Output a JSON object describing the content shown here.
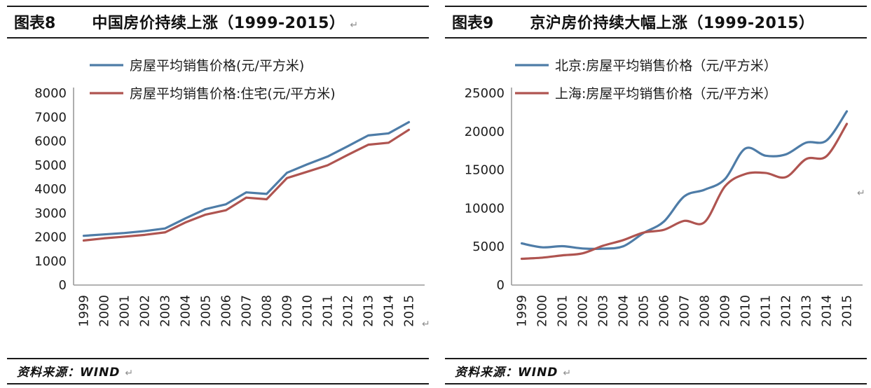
{
  "page": {
    "background": "#ffffff",
    "return_mark": "↵"
  },
  "panels": [
    {
      "id": "china",
      "header": {
        "label": "图表8",
        "title": "中国房价持续上涨（1999-2015）"
      },
      "source_label": "资料来源：WIND"
    },
    {
      "id": "beijing-shanghai",
      "header": {
        "label": "图表9",
        "title": "京沪房价持续大幅上涨（1999-2015）"
      },
      "source_label": "资料来源：WIND"
    }
  ],
  "chart_data": [
    {
      "type": "line",
      "title": "中国房价持续上涨（1999-2015）",
      "categories": [
        "1999",
        "2000",
        "2001",
        "2002",
        "2003",
        "2004",
        "2005",
        "2006",
        "2007",
        "2008",
        "2009",
        "2010",
        "2011",
        "2012",
        "2013",
        "2014",
        "2015"
      ],
      "series": [
        {
          "name": "房屋平均销售价格(元/平方米)",
          "color": "#4E7CA7",
          "smooth": false,
          "values": [
            2053,
            2112,
            2170,
            2250,
            2359,
            2778,
            3168,
            3367,
            3864,
            3800,
            4681,
            5032,
            5357,
            5791,
            6237,
            6323,
            6793
          ]
        },
        {
          "name": "房屋平均销售价格:住宅(元/平方米)",
          "color": "#AF5450",
          "smooth": false,
          "values": [
            1857,
            1948,
            2017,
            2092,
            2197,
            2608,
            2937,
            3119,
            3645,
            3576,
            4459,
            4725,
            4993,
            5430,
            5850,
            5933,
            6473
          ]
        }
      ],
      "xlabel": "",
      "ylabel": "",
      "ylim": [
        0,
        8000
      ],
      "ytick_step": 1000,
      "yticks": [
        0,
        1000,
        2000,
        3000,
        4000,
        5000,
        6000,
        7000,
        8000
      ],
      "grid": false,
      "legend_position": "top-left",
      "axis_color": "#9a9a9a"
    },
    {
      "type": "line",
      "title": "京沪房价持续大幅上涨（1999-2015）",
      "categories": [
        "1999",
        "2000",
        "2001",
        "2002",
        "2003",
        "2004",
        "2005",
        "2006",
        "2007",
        "2008",
        "2009",
        "2010",
        "2011",
        "2012",
        "2013",
        "2014",
        "2015"
      ],
      "series": [
        {
          "name": "北京:房屋平均销售价格（元/平方米）",
          "color": "#4E7CA7",
          "smooth": true,
          "values": [
            5429,
            4919,
            5062,
            4764,
            4737,
            5053,
            6788,
            8280,
            11553,
            12418,
            13799,
            17782,
            16852,
            17022,
            18553,
            18833,
            22633
          ]
        },
        {
          "name": "上海:房屋平均销售价格（元/平方米）",
          "color": "#AF5450",
          "smooth": true,
          "values": [
            3422,
            3565,
            3866,
            4134,
            5118,
            5855,
            6842,
            7196,
            8361,
            8195,
            12840,
            14464,
            14603,
            14061,
            16420,
            16787,
            21000
          ]
        }
      ],
      "xlabel": "",
      "ylabel": "",
      "ylim": [
        0,
        25000
      ],
      "ytick_step": 5000,
      "yticks": [
        0,
        5000,
        10000,
        15000,
        20000,
        25000
      ],
      "grid": false,
      "legend_position": "top-left",
      "axis_color": "#9a9a9a"
    }
  ]
}
